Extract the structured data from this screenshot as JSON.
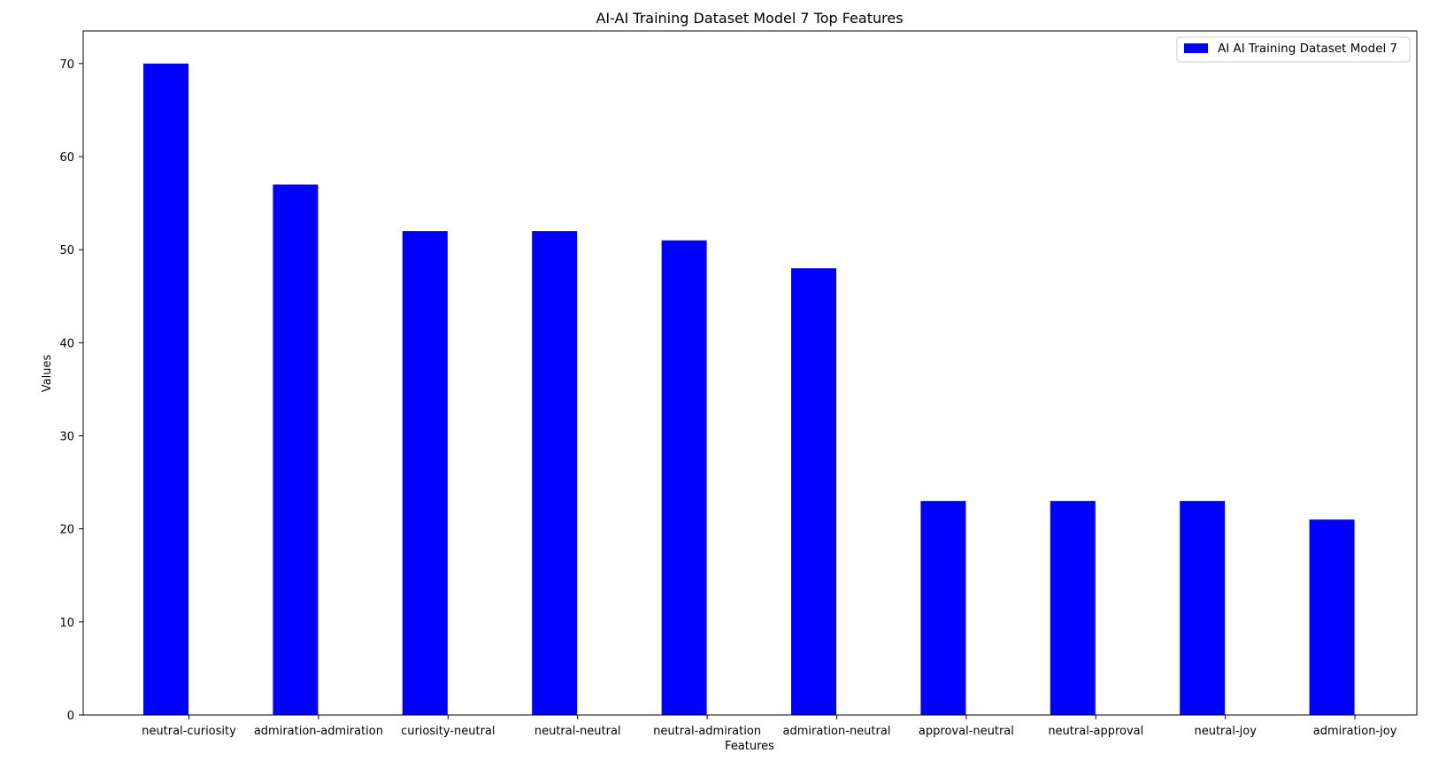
{
  "chart_data": {
    "type": "bar",
    "title": "AI-AI Training Dataset Model 7 Top Features",
    "xlabel": "Features",
    "ylabel": "Values",
    "categories": [
      "neutral-curiosity",
      "admiration-admiration",
      "curiosity-neutral",
      "neutral-neutral",
      "neutral-admiration",
      "admiration-neutral",
      "approval-neutral",
      "neutral-approval",
      "neutral-joy",
      "admiration-joy"
    ],
    "series": [
      {
        "name": "AI AI Training Dataset Model 7",
        "color": "#0000ff",
        "values": [
          70,
          57,
          52,
          52,
          51,
          48,
          23,
          23,
          23,
          21
        ]
      }
    ],
    "ylim": [
      0,
      73.5
    ],
    "yticks": [
      0,
      10,
      20,
      30,
      40,
      50,
      60,
      70
    ],
    "grid": false,
    "legend_position": "top-right"
  }
}
